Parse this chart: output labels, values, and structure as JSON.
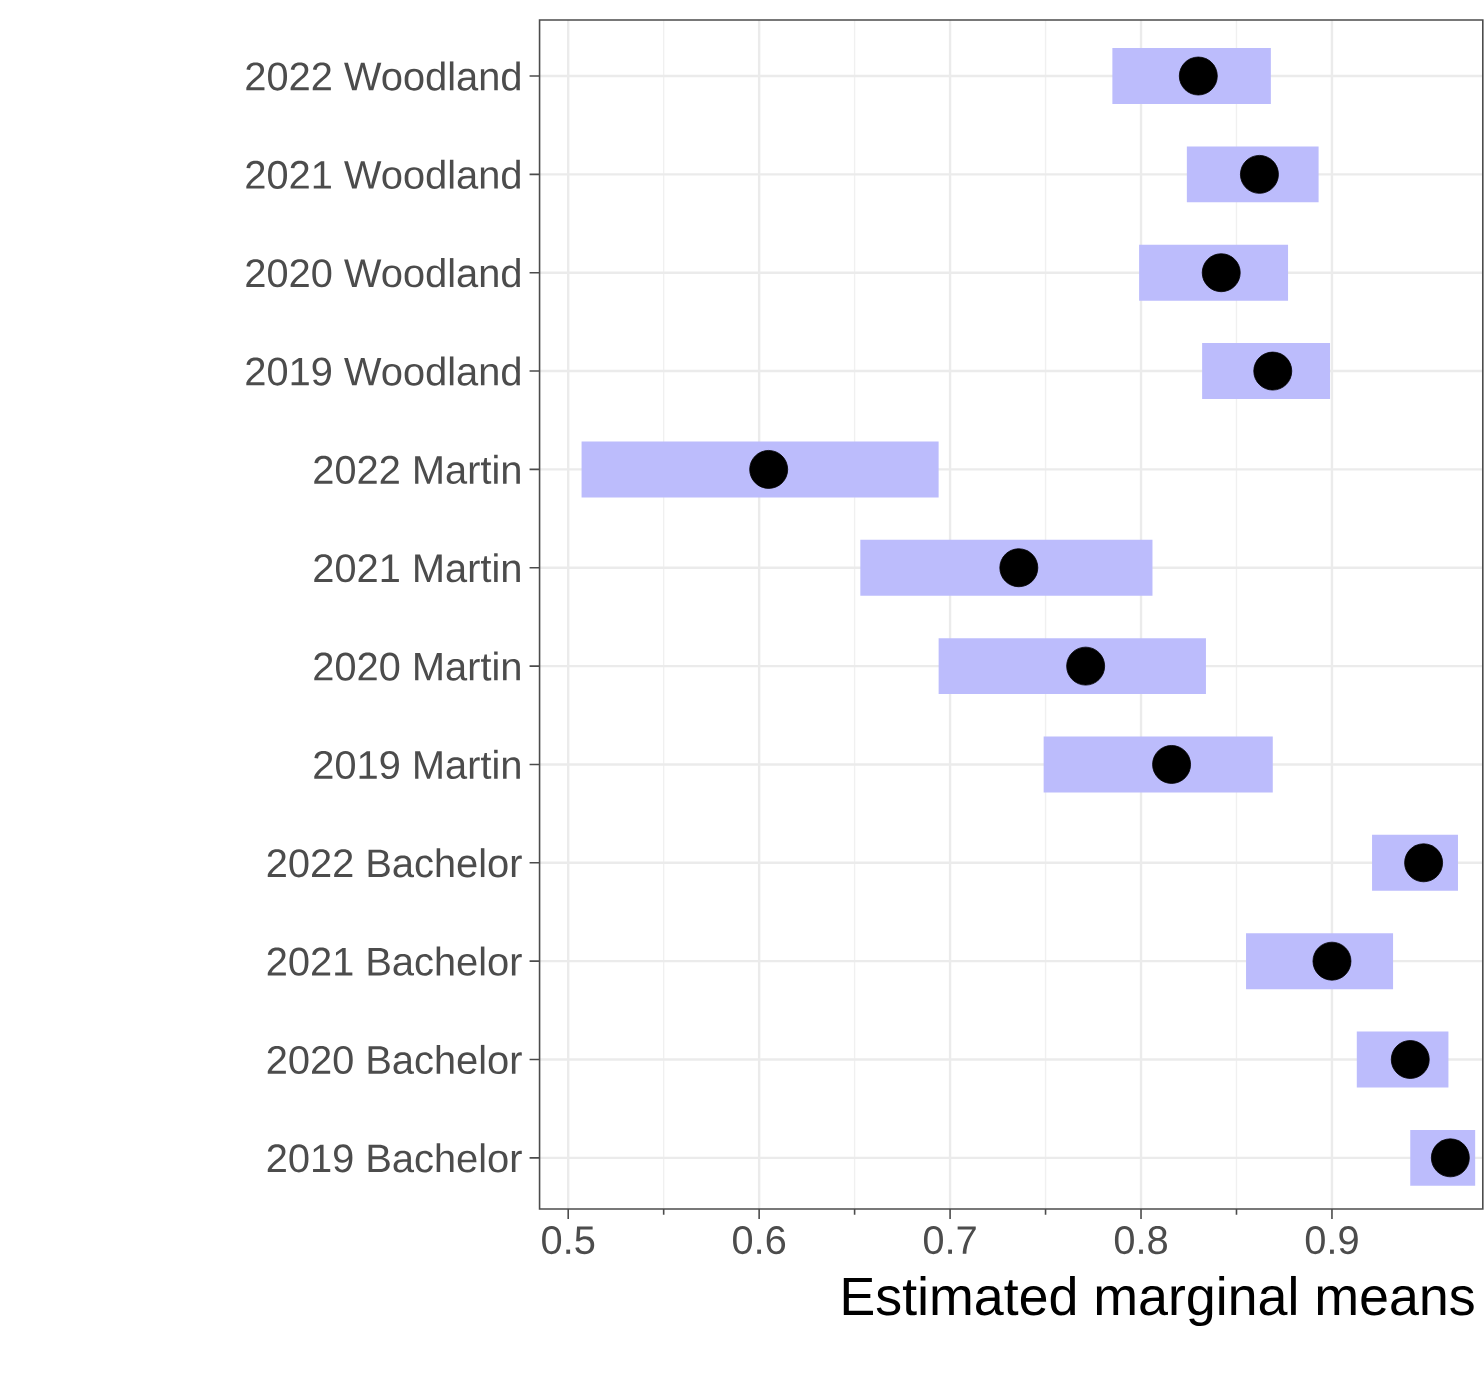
{
  "chart_data": {
    "type": "scatter",
    "orientation": "horizontal",
    "xlabel": "Estimated marginal means",
    "categories": [
      "2022 Woodland",
      "2021 Woodland",
      "2020 Woodland",
      "2019 Woodland",
      "2022 Martin",
      "2021 Martin",
      "2020 Martin",
      "2019 Martin",
      "2022 Bachelor",
      "2021 Bachelor",
      "2020 Bachelor",
      "2019 Bachelor"
    ],
    "values": [
      0.83,
      0.862,
      0.842,
      0.869,
      0.605,
      0.736,
      0.771,
      0.816,
      0.948,
      0.9,
      0.941,
      0.962
    ],
    "errors": [
      [
        0.785,
        0.868
      ],
      [
        0.824,
        0.893
      ],
      [
        0.799,
        0.877
      ],
      [
        0.832,
        0.899
      ],
      [
        0.507,
        0.694
      ],
      [
        0.653,
        0.806
      ],
      [
        0.694,
        0.834
      ],
      [
        0.749,
        0.869
      ],
      [
        0.921,
        0.966
      ],
      [
        0.855,
        0.932
      ],
      [
        0.913,
        0.961
      ],
      [
        0.941,
        0.975
      ]
    ],
    "color": "#000000",
    "marker": "circle",
    "xlim": [
      0.485,
      0.979
    ],
    "xticks": [
      0.5,
      0.6,
      0.7,
      0.8,
      0.9
    ],
    "grid": true
  }
}
